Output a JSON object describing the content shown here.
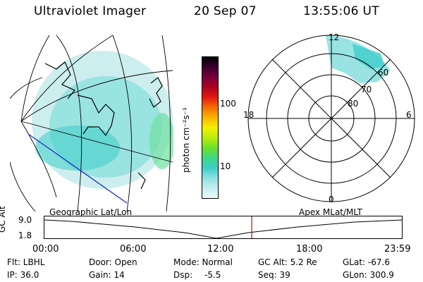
{
  "header": {
    "instrument": "Ultraviolet Imager",
    "date": "20 Sep 07",
    "time": "13:55:06 UT"
  },
  "colorbar": {
    "label": "photon cm⁻²s⁻¹",
    "ticks": [
      "100",
      "10"
    ],
    "scale": "log",
    "colors": [
      "#000000",
      "#3a0030",
      "#7a003a",
      "#b00020",
      "#e21a10",
      "#f46e00",
      "#fbb400",
      "#f4ee00",
      "#b8ee10",
      "#6ee028",
      "#3ed886",
      "#3ecdc8",
      "#8ee0e0",
      "#c6eeee",
      "#eef8f8"
    ]
  },
  "polar": {
    "mlt_labels": {
      "top": "12",
      "left": "18",
      "right": "6",
      "bottom": "0"
    },
    "lat_labels": [
      "60",
      "70",
      "80"
    ]
  },
  "timeline": {
    "axis_label": "GC Alt",
    "left_caption": "Geographic Lat/Lon",
    "right_caption": "Apex MLat/MLT",
    "y_labels": [
      "9.0",
      "1.8"
    ],
    "x_labels": [
      "00:00",
      "06:00",
      "12:00",
      "18:00",
      "23:59"
    ],
    "current_time_fraction": 0.58,
    "marker_color": "#cc0000"
  },
  "status": {
    "filter": "Flt:  LBHL",
    "ip": "IP:  36.0",
    "door": "Door:  Open",
    "gain": "Gain:  14",
    "mode": "Mode:  Normal",
    "dsp_label": "Dsp:",
    "dsp_value": "-5.5",
    "gc_alt": "GC Alt:  5.2 Re",
    "seq": "Seq:  39",
    "glat": "GLat:  -67.6",
    "glon": "GLon:  300.9"
  }
}
